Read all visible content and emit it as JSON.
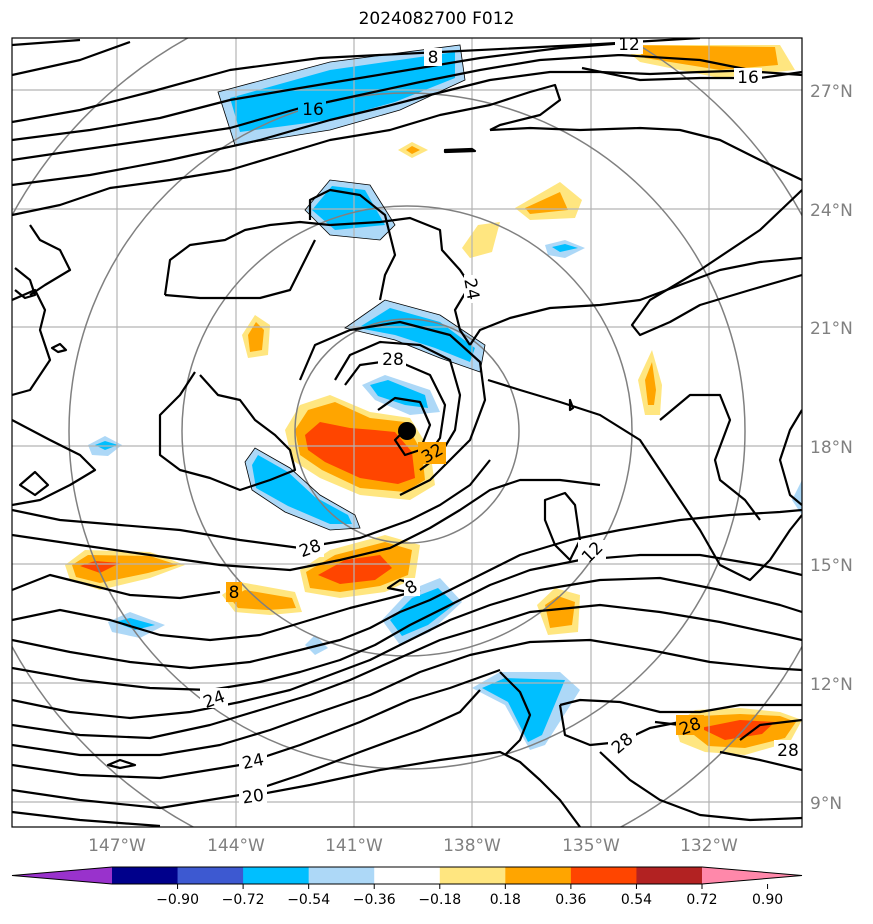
{
  "title": "2024082700 F012",
  "lat_labels": [
    "27°N",
    "24°N",
    "21°N",
    "18°N",
    "15°N",
    "12°N",
    "9°N"
  ],
  "lon_labels": [
    "147°W",
    "144°W",
    "141°W",
    "138°W",
    "135°W",
    "132°W"
  ],
  "colorbar": {
    "tick_labels": [
      "−0.90",
      "−0.72",
      "−0.54",
      "−0.36",
      "−0.18",
      "0.18",
      "0.36",
      "0.54",
      "0.72",
      "0.90"
    ],
    "colors": [
      "#9932cc",
      "#00008b",
      "#3d59d1",
      "#00bfff",
      "#add8f7",
      "#ffffff",
      "#ffe680",
      "#ffa500",
      "#ff4500",
      "#b22222",
      "#ff88aa"
    ]
  },
  "contour_labels": [
    "8",
    "16",
    "12",
    "16",
    "24",
    "28",
    "32",
    "28",
    "12",
    "8",
    "8",
    "24",
    "24",
    "20",
    "28",
    "28",
    "28"
  ],
  "storm_center": "cyclone-center"
}
